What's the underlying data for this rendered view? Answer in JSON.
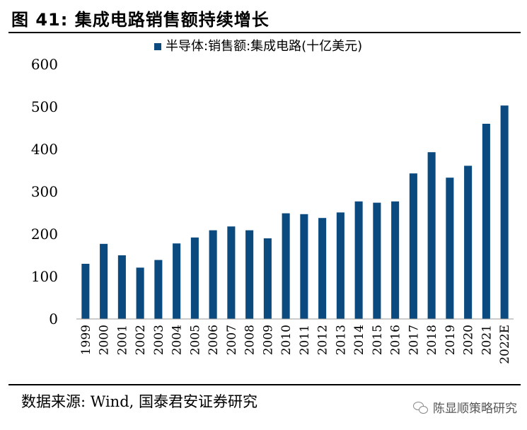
{
  "figure": {
    "title": "图 41:  集成电路销售额持续增长",
    "source": "数据来源:  Wind, 国泰君安证券研究",
    "watermark": "陈显顺策略研究",
    "bar_color": "#0B4A7E"
  },
  "chart_data": {
    "type": "bar",
    "categories": [
      "1999",
      "2000",
      "2001",
      "2002",
      "2003",
      "2004",
      "2005",
      "2006",
      "2007",
      "2008",
      "2009",
      "2010",
      "2011",
      "2012",
      "2013",
      "2014",
      "2015",
      "2016",
      "2017",
      "2018",
      "2019",
      "2020",
      "2021",
      "2022E"
    ],
    "series": [
      {
        "name": "半导体:销售额:集成电路(十亿美元)",
        "values": [
          130,
          177,
          150,
          121,
          139,
          178,
          192,
          209,
          218,
          209,
          190,
          249,
          247,
          238,
          251,
          277,
          274,
          277,
          343,
          393,
          333,
          361,
          460,
          503
        ]
      }
    ],
    "yticks": [
      0,
      100,
      200,
      300,
      400,
      500,
      600
    ],
    "ylim": [
      0,
      600
    ],
    "legend_position": "top",
    "grid": false
  }
}
